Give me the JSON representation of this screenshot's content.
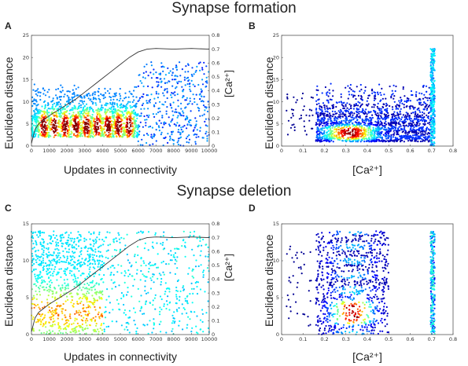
{
  "titles": {
    "formation": "Synapse formation",
    "deletion": "Synapse deletion"
  },
  "panels": [
    {
      "letter": "A",
      "ylabel": "Euclidean distance",
      "xlabel": "Updates in connectivity",
      "ylabel_right": "[Ca²⁺]"
    },
    {
      "letter": "B",
      "ylabel": "Euclidean distance",
      "xlabel": "[Ca²⁺]"
    },
    {
      "letter": "C",
      "ylabel": "Euclidean distance",
      "xlabel": "Updates in connectivity",
      "ylabel_right": "[Ca²⁺]"
    },
    {
      "letter": "D",
      "ylabel": "Euclidean distance",
      "xlabel": "[Ca²⁺]"
    }
  ],
  "chart_data": [
    {
      "panel": "A",
      "type": "scatter",
      "colormap": "jet (blue = low point density, red = high point density)",
      "xlabel": "Updates in connectivity",
      "ylabel": "Euclidean distance",
      "y2label": "[Ca²⁺]",
      "xlim": [
        0,
        10000
      ],
      "ylim": [
        0,
        25
      ],
      "y2lim": [
        0,
        0.8
      ],
      "xticks": [
        "0",
        "1000",
        "2000",
        "3000",
        "4000",
        "5000",
        "6000",
        "7000",
        "8000",
        "9000",
        "10000"
      ],
      "yticks": [
        "0",
        "5",
        "10",
        "15",
        "20",
        "25"
      ],
      "y2ticks": [
        "0",
        "0.1",
        "0.2",
        "0.3",
        "0.4",
        "0.5",
        "0.6",
        "0.7",
        "0.8"
      ],
      "point_clouds": [
        {
          "x_range": [
            0,
            6000
          ],
          "y_range": [
            0,
            15
          ],
          "density": "very high",
          "dense_core_y": [
            1.5,
            8
          ]
        },
        {
          "x_range": [
            6000,
            10000
          ],
          "y_range": [
            0,
            19
          ],
          "density": "low"
        }
      ],
      "calcium_trace": {
        "x": [
          0,
          200,
          400,
          700,
          1000,
          1500,
          2000,
          2500,
          3000,
          3500,
          4000,
          4500,
          5000,
          5500,
          6000,
          6500,
          7000,
          8000,
          9000,
          10000
        ],
        "y": [
          0.02,
          0.12,
          0.16,
          0.19,
          0.22,
          0.26,
          0.3,
          0.34,
          0.39,
          0.44,
          0.49,
          0.54,
          0.59,
          0.64,
          0.68,
          0.7,
          0.705,
          0.7,
          0.705,
          0.7
        ]
      }
    },
    {
      "panel": "B",
      "type": "scatter",
      "colormap": "jet (blue = low point density, red = high point density)",
      "xlabel": "[Ca²⁺]",
      "ylabel": "Euclidean distance",
      "xlim": [
        0,
        0.8
      ],
      "ylim": [
        0,
        25
      ],
      "xticks": [
        "0",
        "0.1",
        "0.2",
        "0.3",
        "0.4",
        "0.5",
        "0.6",
        "0.7",
        "0.8"
      ],
      "yticks": [
        "0",
        "5",
        "10",
        "15",
        "20",
        "25"
      ],
      "point_clouds": [
        {
          "x_range": [
            0.15,
            0.7
          ],
          "y_range": [
            0,
            15
          ],
          "density": "high",
          "dense_core": {
            "x": [
              0.25,
              0.4
            ],
            "y": [
              2,
              4
            ]
          }
        },
        {
          "x_range": [
            0.69,
            0.72
          ],
          "y_range": [
            0,
            22
          ],
          "density": "high vertical band"
        },
        {
          "x_range": [
            0.0,
            0.15
          ],
          "y_range": [
            2,
            12
          ],
          "density": "sparse"
        }
      ]
    },
    {
      "panel": "C",
      "type": "scatter",
      "colormap": "jet (blue = low point density, red = high point density)",
      "xlabel": "Updates in connectivity",
      "ylabel": "Euclidean distance",
      "y2label": "[Ca²⁺]",
      "xlim": [
        0,
        10000
      ],
      "ylim": [
        0,
        15
      ],
      "y2lim": [
        0,
        0.8
      ],
      "xticks": [
        "0",
        "1000",
        "2000",
        "3000",
        "4000",
        "5000",
        "6000",
        "7000",
        "8000",
        "9000",
        "10000"
      ],
      "yticks": [
        "0",
        "5",
        "10",
        "15"
      ],
      "y2ticks": [
        "0",
        "0.1",
        "0.2",
        "0.3",
        "0.4",
        "0.5",
        "0.6",
        "0.7",
        "0.8"
      ],
      "point_clouds": [
        {
          "x_range": [
            0,
            4000
          ],
          "y_range": [
            0,
            14
          ],
          "density": "medium"
        },
        {
          "x_range": [
            4000,
            10000
          ],
          "y_range": [
            0,
            14
          ],
          "density": "low"
        }
      ],
      "calcium_trace": {
        "x": [
          0,
          200,
          400,
          700,
          1000,
          1500,
          2000,
          2500,
          3000,
          3500,
          4000,
          4500,
          5000,
          5500,
          6000,
          6500,
          7000,
          8000,
          9000,
          10000
        ],
        "y": [
          0.02,
          0.12,
          0.16,
          0.19,
          0.22,
          0.26,
          0.3,
          0.34,
          0.39,
          0.44,
          0.49,
          0.54,
          0.59,
          0.64,
          0.68,
          0.7,
          0.705,
          0.7,
          0.705,
          0.7
        ]
      }
    },
    {
      "panel": "D",
      "type": "scatter",
      "colormap": "jet (blue = low point density, red = high point density)",
      "xlabel": "[Ca²⁺]",
      "ylabel": "Euclidean distance",
      "xlim": [
        0,
        0.8
      ],
      "ylim": [
        0,
        15
      ],
      "xticks": [
        "0",
        "0.1",
        "0.2",
        "0.3",
        "0.4",
        "0.5",
        "0.6",
        "0.7",
        "0.8"
      ],
      "yticks": [
        "0",
        "5",
        "10",
        "15"
      ],
      "point_clouds": [
        {
          "x_range": [
            0.15,
            0.5
          ],
          "y_range": [
            0,
            14
          ],
          "density": "medium",
          "dense_core": {
            "x": [
              0.25,
              0.4
            ],
            "y": [
              2,
              4
            ]
          }
        },
        {
          "x_range": [
            0.69,
            0.72
          ],
          "y_range": [
            0,
            14
          ],
          "density": "high vertical band"
        },
        {
          "x_range": [
            0.0,
            0.15
          ],
          "y_range": [
            1,
            12
          ],
          "density": "sparse"
        }
      ]
    }
  ]
}
